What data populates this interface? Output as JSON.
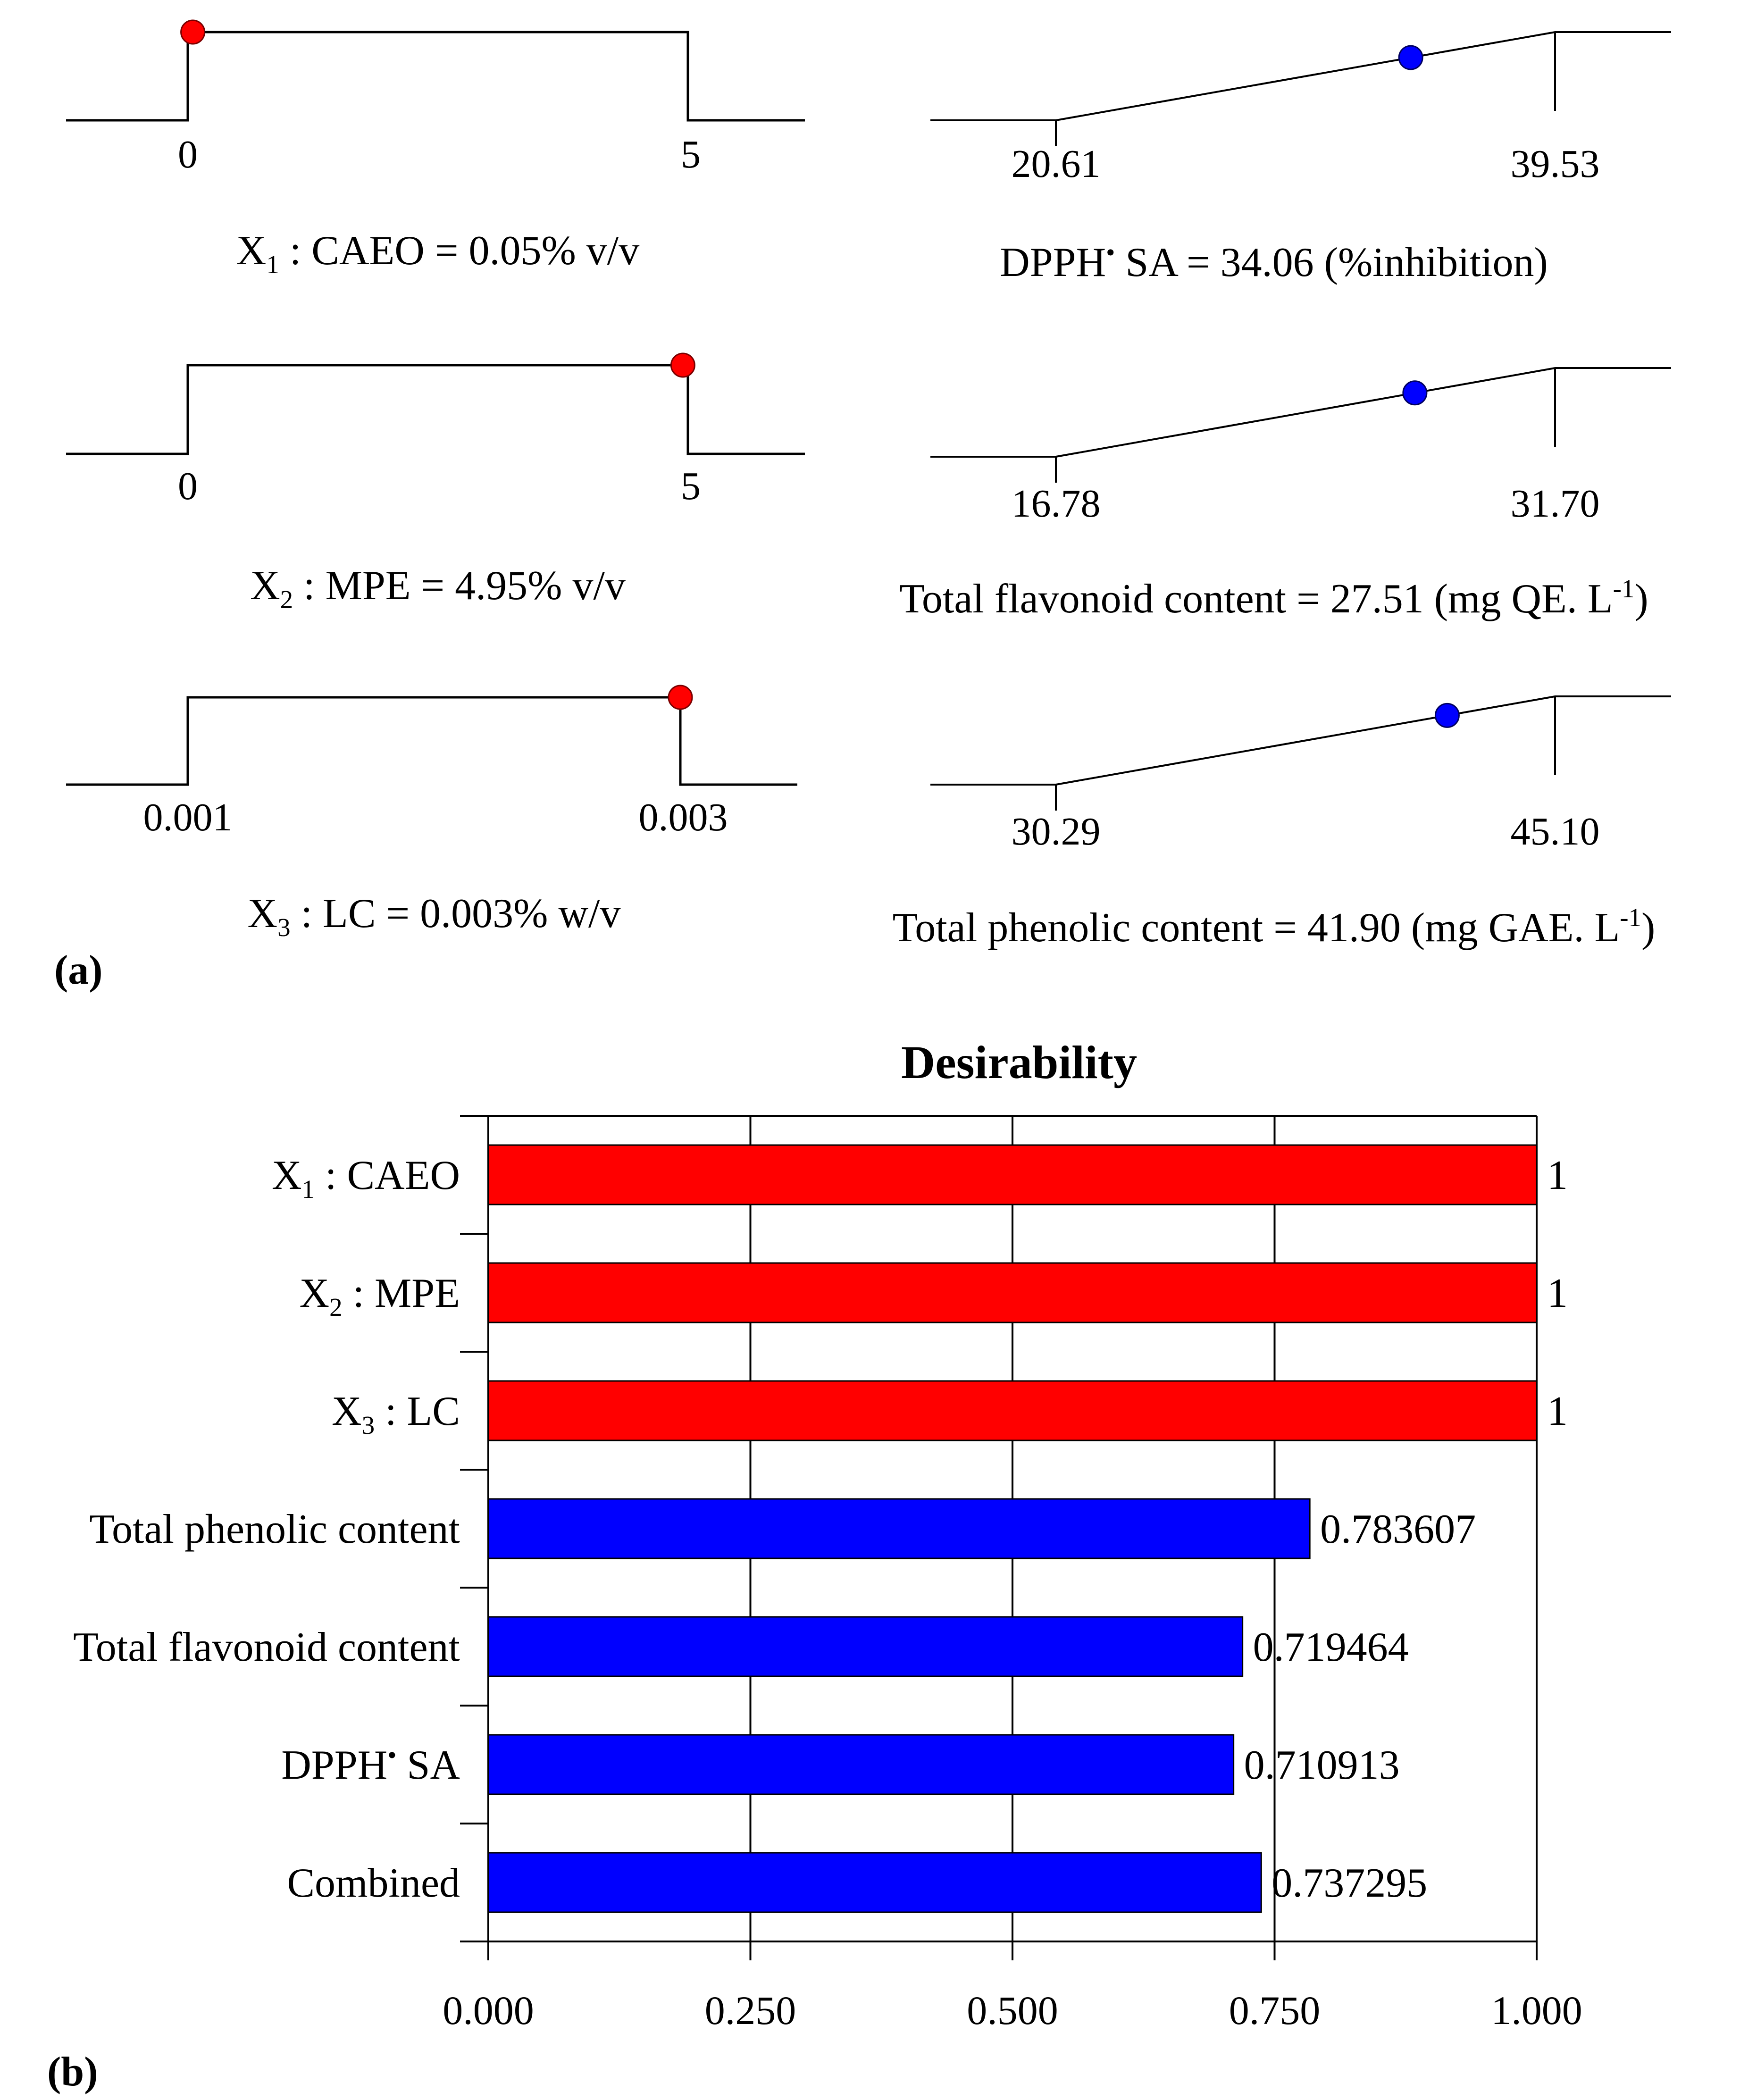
{
  "colors": {
    "factor": "#ff0000",
    "response": "#0000ff",
    "line": "#000000",
    "background": "#ffffff"
  },
  "panel_labels": {
    "a": "(a)",
    "b": "(b)"
  },
  "chart_data": [
    {
      "type": "ramp",
      "panel": "(a)",
      "plots": [
        {
          "kind": "factor",
          "low_label": "0",
          "high_label": "5",
          "caption": {
            "var": "X",
            "sub": "1",
            "rest": " : CAEO = 0.05% v/v"
          },
          "value_fraction": 0.01
        },
        {
          "kind": "factor",
          "low_label": "0",
          "high_label": "5",
          "caption": {
            "var": "X",
            "sub": "2",
            "rest": " : MPE = 4.95% v/v"
          },
          "value_fraction": 0.99
        },
        {
          "kind": "factor",
          "low_label": "0.001",
          "high_label": "0.003",
          "caption": {
            "var": "X",
            "sub": "3",
            "rest": " : LC = 0.003% w/v"
          },
          "value_fraction": 1.0
        },
        {
          "kind": "response",
          "low": 20.61,
          "high": 39.53,
          "low_label": "20.61",
          "high_label": "39.53",
          "caption": {
            "pre": "DPPH",
            "sup": "•",
            "post": " SA = 34.06 (%inhibition)"
          },
          "value": 34.06
        },
        {
          "kind": "response",
          "low": 16.78,
          "high": 31.7,
          "low_label": "16.78",
          "high_label": "31.70",
          "caption": {
            "pre": "Total flavonoid content = 27.51 (mg QE. L",
            "sup": "-1",
            "post": ")"
          },
          "value": 27.51
        },
        {
          "kind": "response",
          "low": 30.29,
          "high": 45.1,
          "low_label": "30.29",
          "high_label": "45.10",
          "caption": {
            "pre": "Total phenolic content = 41.90 (mg GAE. L",
            "sup": "-1",
            "post": ")"
          },
          "value": 41.9
        }
      ]
    },
    {
      "type": "bar",
      "panel": "(b)",
      "title": "Desirability",
      "orientation": "horizontal",
      "xlim": [
        0,
        1
      ],
      "ticks": [
        "0.000",
        "0.250",
        "0.500",
        "0.750",
        "1.000"
      ],
      "bars": [
        {
          "label": {
            "var": "X",
            "sub": "1",
            "rest": " : CAEO"
          },
          "value": 1,
          "value_label": "1",
          "kind": "factor"
        },
        {
          "label": {
            "var": "X",
            "sub": "2",
            "rest": " : MPE"
          },
          "value": 1,
          "value_label": "1",
          "kind": "factor"
        },
        {
          "label": {
            "var": "X",
            "sub": "3",
            "rest": " : LC"
          },
          "value": 1,
          "value_label": "1",
          "kind": "factor"
        },
        {
          "label": {
            "text": "Total phenolic content"
          },
          "value": 0.783607,
          "value_label": "0.783607",
          "kind": "response"
        },
        {
          "label": {
            "text": "Total flavonoid content"
          },
          "value": 0.719464,
          "value_label": "0.719464",
          "kind": "response"
        },
        {
          "label": {
            "pre": "DPPH",
            "sup": "•",
            "post": " SA"
          },
          "value": 0.710913,
          "value_label": "0.710913",
          "kind": "response"
        },
        {
          "label": {
            "text": "Combined"
          },
          "value": 0.737295,
          "value_label": "0.737295",
          "kind": "response"
        }
      ]
    }
  ]
}
